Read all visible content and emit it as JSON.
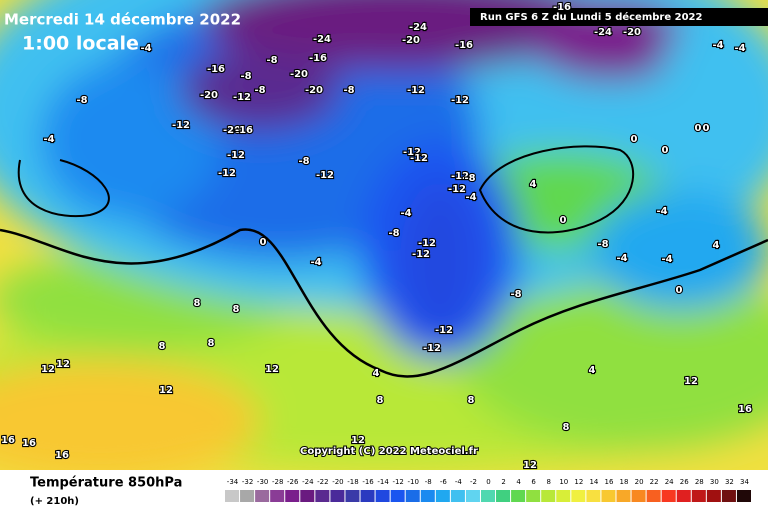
{
  "header": {
    "date": "Mercredi 14 décembre 2022",
    "time": "1:00 locale",
    "run": "Run GFS 6 Z du Lundi 5 décembre 2022"
  },
  "copyright": "Copyright (C) 2022 Meteociel.fr",
  "legend": {
    "title": "Température 850hPa",
    "subtitle": "(+ 210h)",
    "ticks": [
      -34,
      -32,
      -30,
      -28,
      -26,
      -24,
      -22,
      -20,
      -18,
      -16,
      -14,
      -12,
      -10,
      -8,
      -6,
      -4,
      -2,
      0,
      2,
      4,
      6,
      8,
      10,
      12,
      14,
      16,
      18,
      20,
      22,
      24,
      26,
      28,
      30,
      32,
      34
    ],
    "colors": [
      "#c8c8c8",
      "#a8a8a8",
      "#9a6a9e",
      "#8a3c96",
      "#7a1e8c",
      "#6a1a80",
      "#5a2a90",
      "#4a2a9a",
      "#3a3aa8",
      "#2a3ac0",
      "#2048e0",
      "#1a55f0",
      "#1a6de8",
      "#1a8af0",
      "#20a8f0",
      "#40c0f0",
      "#60d4f0",
      "#50d8b0",
      "#40d080",
      "#60d850",
      "#90e040",
      "#b8e838",
      "#d8ee38",
      "#f0f040",
      "#f8e040",
      "#f8c830",
      "#f8a828",
      "#f88820",
      "#f86020",
      "#f83820",
      "#e02020",
      "#c01818",
      "#a01010",
      "#701010",
      "#200808"
    ]
  },
  "map": {
    "labels": [
      "-24",
      "-24",
      "-20",
      "-16",
      "-16",
      "-24",
      "-20",
      "-4",
      "-4",
      "-4",
      "-16",
      "-8",
      "-16",
      "-8",
      "-20",
      "-20",
      "-12",
      "-8",
      "-20",
      "-8",
      "-12",
      "-12",
      "-8",
      "-12",
      "-20",
      "-16",
      "-12",
      "-8",
      "-12",
      "-12",
      "-12",
      "-12",
      "-12",
      "-8",
      "-12",
      "-4",
      "0",
      "0",
      "0",
      "0",
      "-4",
      "4",
      "0",
      "-4",
      "-8",
      "-12",
      "-12",
      "-4",
      "-8",
      "4",
      "0",
      "-4",
      "-4",
      "-4",
      "-8",
      "0",
      "8",
      "8",
      "8",
      "8",
      "-12",
      "-12",
      "12",
      "12",
      "12",
      "12",
      "4",
      "4",
      "8",
      "8",
      "12",
      "16",
      "16",
      "16",
      "16",
      "12",
      "8",
      "12"
    ]
  }
}
